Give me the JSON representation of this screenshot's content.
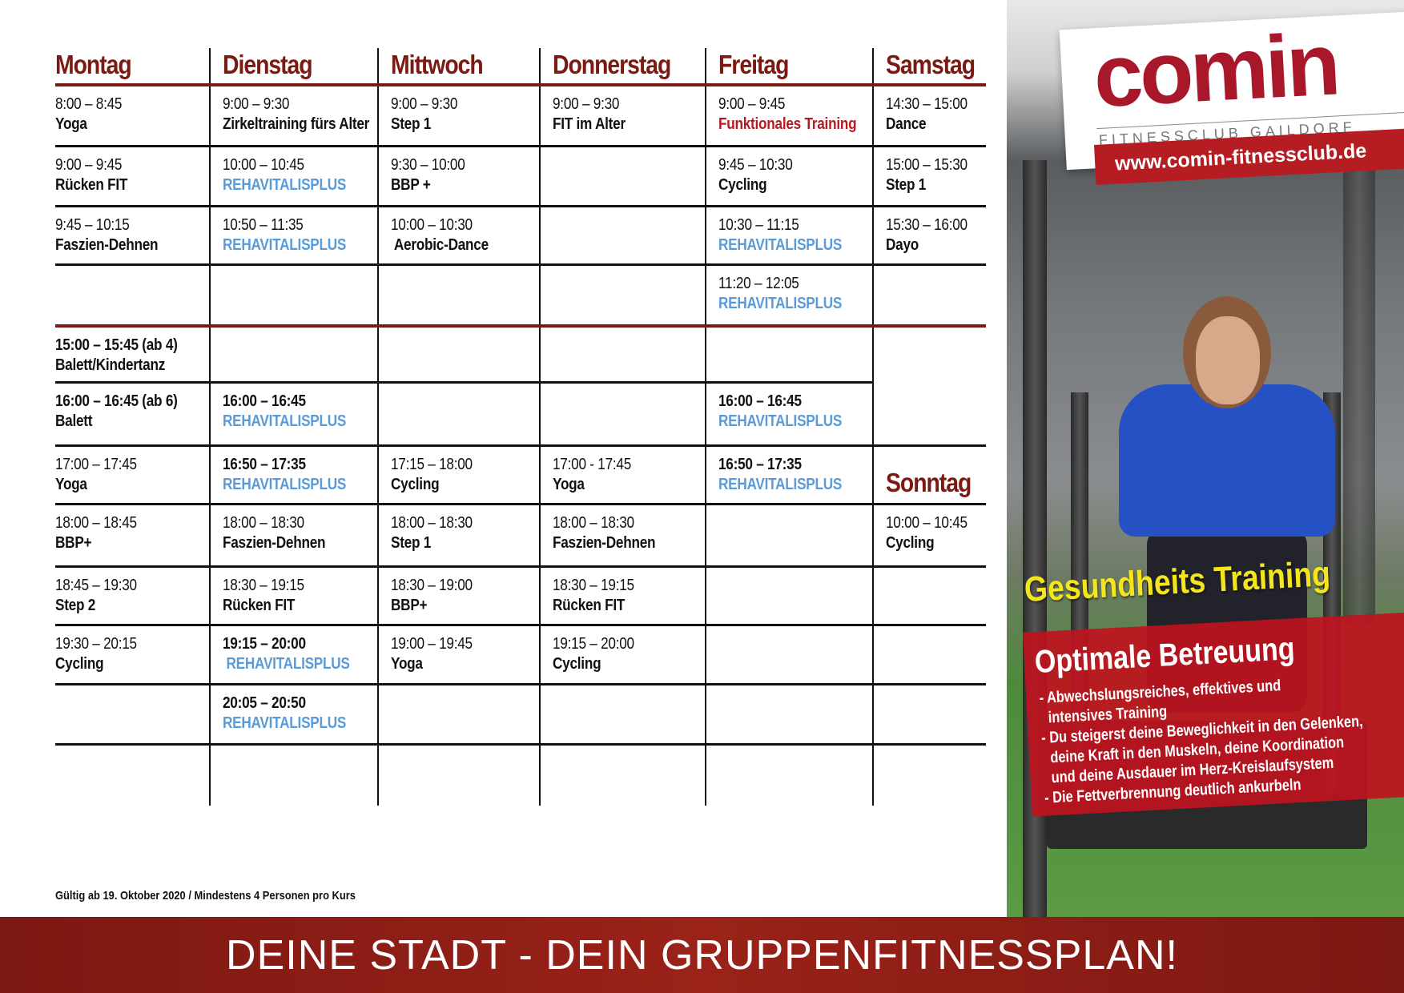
{
  "days": [
    "Montag",
    "Dienstag",
    "Mittwoch",
    "Donnerstag",
    "Freitag",
    "Samstag"
  ],
  "sunday_label": "Sonntag",
  "rows": [
    [
      {
        "time": "8:00 – 8:45",
        "name": "Yoga"
      },
      {
        "time": "9:00 – 9:30",
        "name": "Zirkeltraining fürs Alter"
      },
      {
        "time": "9:00 – 9:30",
        "name": "Step 1"
      },
      {
        "time": "9:00 – 9:30",
        "name": "FIT im Alter"
      },
      {
        "time": "9:00 – 9:45",
        "name": "Funktionales Training",
        "style": "red"
      },
      {
        "time": "14:30 – 15:00",
        "name": "Dance"
      }
    ],
    [
      {
        "time": "9:00 – 9:45",
        "name": "Rücken FIT"
      },
      {
        "time": "10:00 – 10:45",
        "name": "REHAVITALISPLUS",
        "style": "rehab"
      },
      {
        "time": "9:30 – 10:00",
        "name": "BBP +"
      },
      null,
      {
        "time": "9:45 – 10:30",
        "name": "Cycling"
      },
      {
        "time": "15:00 – 15:30",
        "name": "Step 1"
      }
    ],
    [
      {
        "time": "9:45 – 10:15",
        "name": "Faszien-Dehnen"
      },
      {
        "time": "10:50 – 11:35",
        "name": "REHAVITALISPLUS",
        "style": "rehab"
      },
      {
        "time": "10:00 – 10:30",
        "name": " Aerobic-Dance"
      },
      null,
      {
        "time": "10:30 – 11:15",
        "name": "REHAVITALISPLUS",
        "style": "rehab"
      },
      {
        "time": "15:30 – 16:00",
        "name": "Dayo"
      }
    ],
    [
      null,
      null,
      null,
      null,
      {
        "time": "11:20 – 12:05",
        "name": "REHAVITALISPLUS",
        "style": "rehab"
      },
      null
    ],
    [
      {
        "time": "15:00 – 15:45 (ab 4)",
        "name": "Balett/Kindertanz",
        "bold_time": true
      },
      null,
      null,
      null,
      null,
      null
    ],
    [
      {
        "time": "16:00 – 16:45 (ab 6)",
        "name": "Balett",
        "bold_time": true
      },
      {
        "time": "16:00 – 16:45",
        "name": "REHAVITALISPLUS",
        "style": "rehab",
        "bold_time": true
      },
      null,
      null,
      {
        "time": "16:00 – 16:45",
        "name": "REHAVITALISPLUS",
        "style": "rehab",
        "bold_time": true
      },
      null
    ],
    [
      {
        "time": "17:00 – 17:45",
        "name": "Yoga"
      },
      {
        "time": "16:50 – 17:35",
        "name": "REHAVITALISPLUS",
        "style": "rehab",
        "bold_time": true
      },
      {
        "time": "17:15 – 18:00",
        "name": "Cycling"
      },
      {
        "time": "17:00 - 17:45",
        "name": "Yoga"
      },
      {
        "time": "16:50 – 17:35",
        "name": "REHAVITALISPLUS",
        "style": "rehab",
        "bold_time": true
      },
      null
    ],
    [
      {
        "time": "18:00 – 18:45",
        "name": "BBP+"
      },
      {
        "time": "18:00 – 18:30",
        "name": "Faszien-Dehnen"
      },
      {
        "time": "18:00 – 18:30",
        "name": "Step 1"
      },
      {
        "time": "18:00 – 18:30",
        "name": "Faszien-Dehnen"
      },
      null,
      {
        "time": "10:00 – 10:45",
        "name": "Cycling"
      }
    ],
    [
      {
        "time": "18:45 – 19:30",
        "name": "Step 2"
      },
      {
        "time": "18:30 – 19:15",
        "name": "Rücken FIT"
      },
      {
        "time": "18:30 – 19:00",
        "name": "BBP+"
      },
      {
        "time": "18:30 – 19:15",
        "name": "Rücken FIT"
      },
      null,
      null
    ],
    [
      {
        "time": "19:30 – 20:15",
        "name": "Cycling"
      },
      {
        "time": "19:15 – 20:00",
        "name": " REHAVITALISPLUS",
        "style": "rehab",
        "bold_time": true
      },
      {
        "time": "19:00 – 19:45",
        "name": "Yoga"
      },
      {
        "time": "19:15 – 20:00",
        "name": "Cycling"
      },
      null,
      null
    ],
    [
      null,
      {
        "time": "20:05 – 20:50",
        "name": "REHAVITALISPLUS",
        "style": "rehab",
        "bold_time": true
      },
      null,
      null,
      null,
      null
    ],
    [
      null,
      null,
      null,
      null,
      null,
      null
    ]
  ],
  "footnote": "Gültig ab 19. Oktober 2020 / Mindestens 4 Personen pro Kurs",
  "banner": "DEINE STADT - DEIN GRUPPENFITNESSPLAN!",
  "promo": {
    "logo": "comin",
    "logo_sub": "FITNESSCLUB GAILDORF",
    "url": "www.comin-fitnessclub.de",
    "headline": "Gesundheits Training",
    "subheadline": "Optimale Betreuung",
    "bullets": [
      "- Abwechslungsreiches, effektives und",
      "  intensives Training",
      "- Du steigerst deine Beweglichkeit in den Gelenken,",
      "  deine Kraft in den Muskeln, deine Koordination",
      "  und deine Ausdauer im Herz-Kreislaufsystem",
      "- Die Fettverbrennung deutlich ankurbeln"
    ]
  },
  "colors": {
    "heading": "#7a1a12",
    "rehab": "#5b9bd5",
    "highlight": "#b01c22",
    "banner": "#8b1a14",
    "headline": "#f3e61c"
  }
}
